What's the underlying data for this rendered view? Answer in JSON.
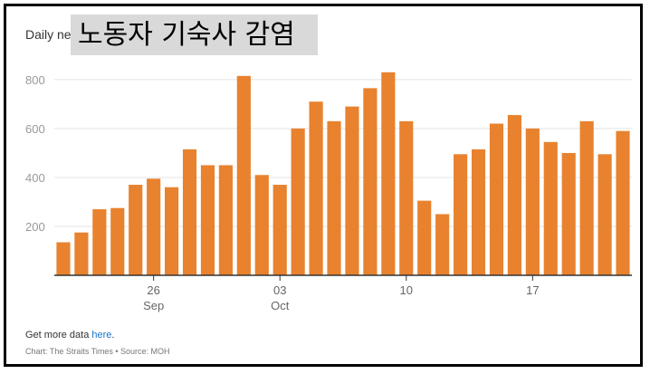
{
  "chart_data": {
    "type": "bar",
    "title": "Daily new cases of the past month",
    "overlay_title": "노동자 기숙사 감염",
    "color": "#e8822e",
    "ylim": [
      0,
      870
    ],
    "yticks": [
      200,
      400,
      600,
      800
    ],
    "xticks": [
      {
        "index": 5,
        "label": "26",
        "sublabel": "Sep"
      },
      {
        "index": 12,
        "label": "03",
        "sublabel": "Oct"
      },
      {
        "index": 19,
        "label": "10",
        "sublabel": ""
      },
      {
        "index": 26,
        "label": "17",
        "sublabel": ""
      }
    ],
    "values": [
      135,
      175,
      270,
      275,
      370,
      395,
      360,
      515,
      450,
      450,
      815,
      410,
      370,
      600,
      710,
      630,
      690,
      765,
      830,
      630,
      305,
      250,
      495,
      515,
      620,
      655,
      600,
      545,
      500,
      630,
      495,
      590
    ]
  },
  "footer": {
    "prefix": "Get more data ",
    "link": "here",
    "suffix": ".",
    "source": "Chart: The Straits Times • Source: MOH"
  }
}
